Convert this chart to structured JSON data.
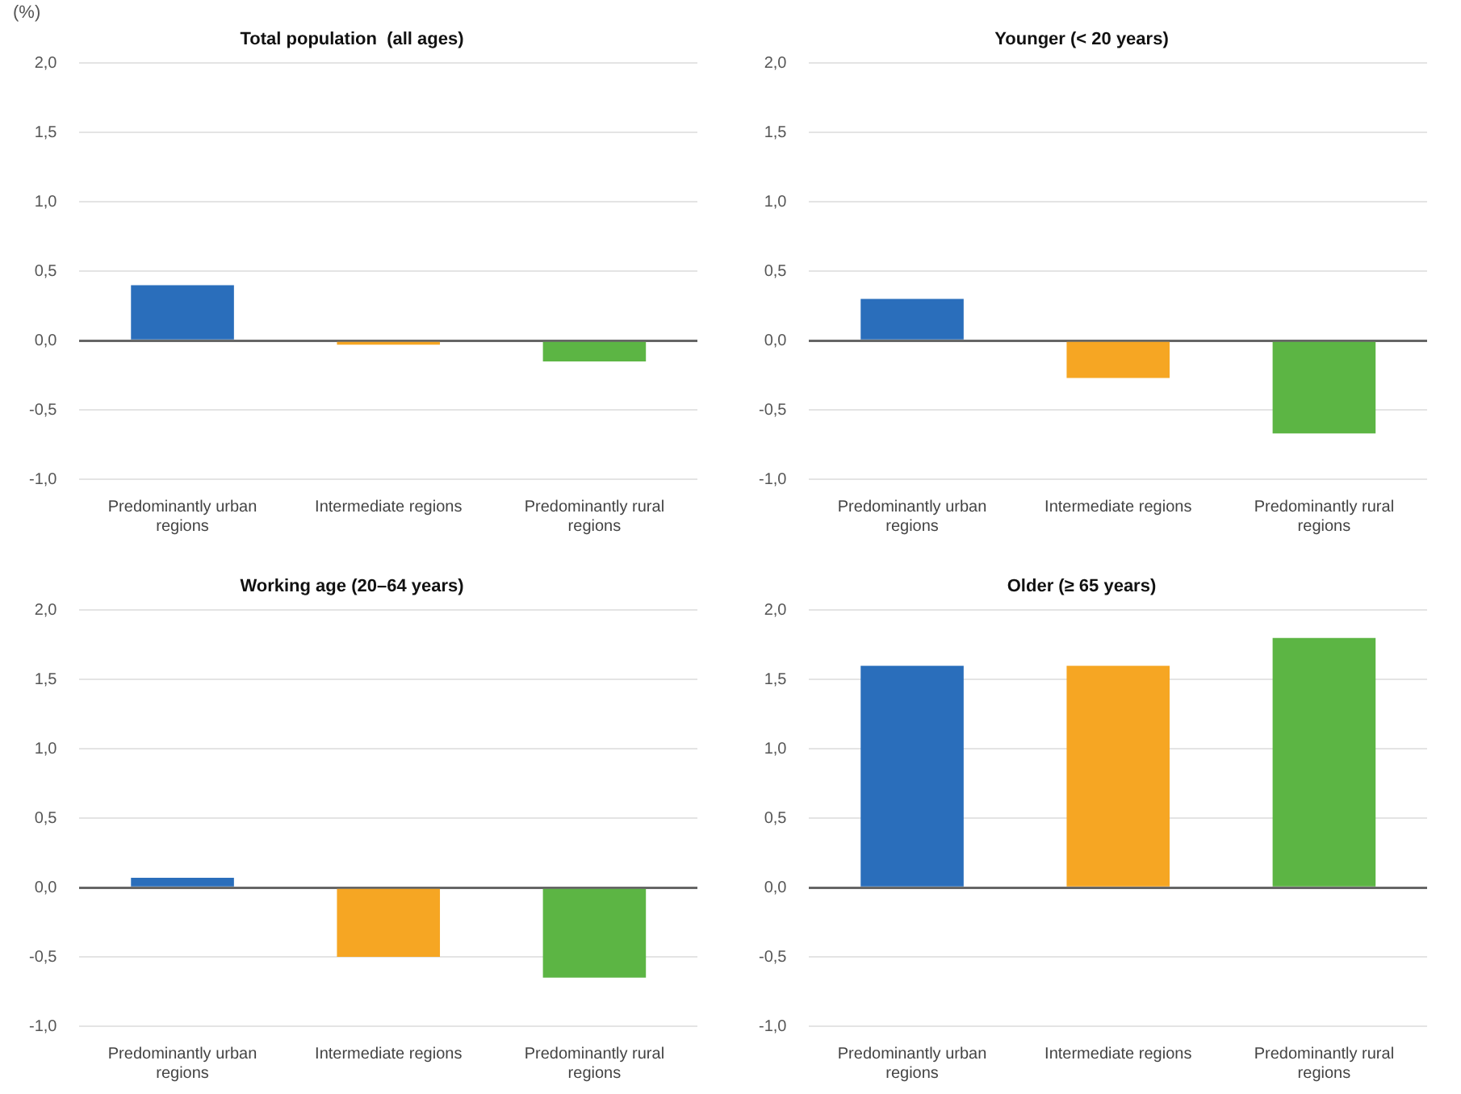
{
  "chart_data": [
    {
      "type": "bar",
      "title": "Total population  (all ages)",
      "ylabel": "(%)",
      "categories": [
        "Predominantly urban regions",
        "Intermediate regions",
        "Predominantly rural regions"
      ],
      "values": [
        0.4,
        -0.03,
        -0.15
      ],
      "colors": [
        "#2a6ebb",
        "#f6a623",
        "#5cb544"
      ],
      "ylim": [
        -1,
        2
      ],
      "yticks": [
        {
          "value": -1,
          "label": "-1,0"
        },
        {
          "value": -0.5,
          "label": "-0,5"
        },
        {
          "value": 0,
          "label": "0,0"
        },
        {
          "value": 0.5,
          "label": "0,5"
        },
        {
          "value": 1,
          "label": "1,0"
        },
        {
          "value": 1.5,
          "label": "1,5"
        },
        {
          "value": 2,
          "label": "2,0"
        }
      ],
      "grid": "y"
    },
    {
      "type": "bar",
      "title": "Younger (< 20 years)",
      "categories": [
        "Predominantly urban regions",
        "Intermediate regions",
        "Predominantly rural regions"
      ],
      "values": [
        0.3,
        -0.27,
        -0.67
      ],
      "colors": [
        "#2a6ebb",
        "#f6a623",
        "#5cb544"
      ],
      "ylim": [
        -1,
        2
      ],
      "yticks": [
        {
          "value": -1,
          "label": "-1,0"
        },
        {
          "value": -0.5,
          "label": "-0,5"
        },
        {
          "value": 0,
          "label": "0,0"
        },
        {
          "value": 0.5,
          "label": "0,5"
        },
        {
          "value": 1,
          "label": "1,0"
        },
        {
          "value": 1.5,
          "label": "1,5"
        },
        {
          "value": 2,
          "label": "2,0"
        }
      ],
      "grid": "y"
    },
    {
      "type": "bar",
      "title": "Working age (20–64 years)",
      "categories": [
        "Predominantly urban regions",
        "Intermediate regions",
        "Predominantly rural regions"
      ],
      "values": [
        0.07,
        -0.5,
        -0.65
      ],
      "colors": [
        "#2a6ebb",
        "#f6a623",
        "#5cb544"
      ],
      "ylim": [
        -1,
        2
      ],
      "yticks": [
        {
          "value": -1,
          "label": "-1,0"
        },
        {
          "value": -0.5,
          "label": "-0,5"
        },
        {
          "value": 0,
          "label": "0,0"
        },
        {
          "value": 0.5,
          "label": "0,5"
        },
        {
          "value": 1,
          "label": "1,0"
        },
        {
          "value": 1.5,
          "label": "1,5"
        },
        {
          "value": 2,
          "label": "2,0"
        }
      ],
      "grid": "y"
    },
    {
      "type": "bar",
      "title": "Older (≥ 65 years)",
      "categories": [
        "Predominantly urban regions",
        "Intermediate regions",
        "Predominantly rural regions"
      ],
      "values": [
        1.6,
        1.6,
        1.8
      ],
      "colors": [
        "#2a6ebb",
        "#f6a623",
        "#5cb544"
      ],
      "ylim": [
        -1,
        2
      ],
      "yticks": [
        {
          "value": -1,
          "label": "-1,0"
        },
        {
          "value": -0.5,
          "label": "-0,5"
        },
        {
          "value": 0,
          "label": "0,0"
        },
        {
          "value": 0.5,
          "label": "0,5"
        },
        {
          "value": 1,
          "label": "1,0"
        },
        {
          "value": 1.5,
          "label": "1,5"
        },
        {
          "value": 2,
          "label": "2,0"
        }
      ],
      "grid": "y"
    }
  ]
}
